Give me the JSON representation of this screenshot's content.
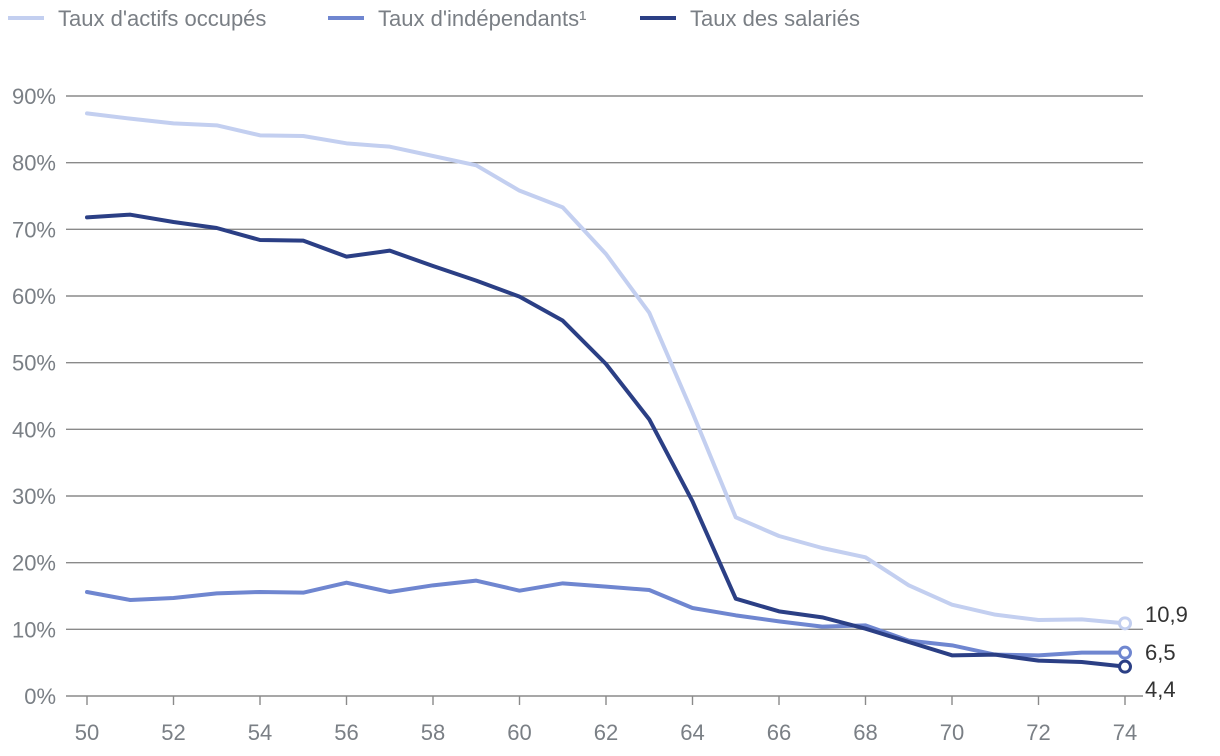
{
  "chart_data": {
    "type": "line",
    "title": "",
    "xlabel": "",
    "ylabel": "",
    "x": [
      50,
      51,
      52,
      53,
      54,
      55,
      56,
      57,
      58,
      59,
      60,
      61,
      62,
      63,
      64,
      65,
      66,
      67,
      68,
      69,
      70,
      71,
      72,
      73,
      74
    ],
    "x_ticks": [
      "50",
      "52",
      "54",
      "56",
      "58",
      "60",
      "62",
      "64",
      "66",
      "68",
      "70",
      "72",
      "74"
    ],
    "y_ticks": [
      "0%",
      "10%",
      "20%",
      "30%",
      "40%",
      "50%",
      "60%",
      "70%",
      "80%",
      "90%"
    ],
    "xlim": [
      50,
      74
    ],
    "ylim": [
      0,
      90
    ],
    "grid": "horizontal",
    "legend_position": "top-left",
    "series": [
      {
        "name": "Taux d'actifs occupés",
        "color": "#c3cff0",
        "values": [
          87.4,
          86.6,
          85.9,
          85.6,
          84.1,
          84.0,
          82.9,
          82.4,
          81.0,
          79.6,
          75.8,
          73.3,
          66.3,
          57.5,
          42.5,
          26.8,
          24.0,
          22.2,
          20.8,
          16.6,
          13.7,
          12.2,
          11.4,
          11.5,
          10.9
        ],
        "end_label": "10,9"
      },
      {
        "name": "Taux d'indépendants¹",
        "color": "#6f86d0",
        "values": [
          15.6,
          14.4,
          14.7,
          15.4,
          15.6,
          15.5,
          17.0,
          15.6,
          16.6,
          17.3,
          15.8,
          16.9,
          16.4,
          15.9,
          13.2,
          12.1,
          11.2,
          10.4,
          10.6,
          8.3,
          7.6,
          6.2,
          6.1,
          6.5,
          6.5
        ],
        "end_label": "6,5"
      },
      {
        "name": "Taux des salariés",
        "color": "#2b3f85",
        "values": [
          71.8,
          72.2,
          71.1,
          70.2,
          68.4,
          68.3,
          65.9,
          66.8,
          64.5,
          62.3,
          59.9,
          56.3,
          49.8,
          41.5,
          29.2,
          14.6,
          12.7,
          11.8,
          10.1,
          8.1,
          6.1,
          6.2,
          5.3,
          5.1,
          4.4
        ],
        "end_label": "4,4"
      }
    ]
  }
}
